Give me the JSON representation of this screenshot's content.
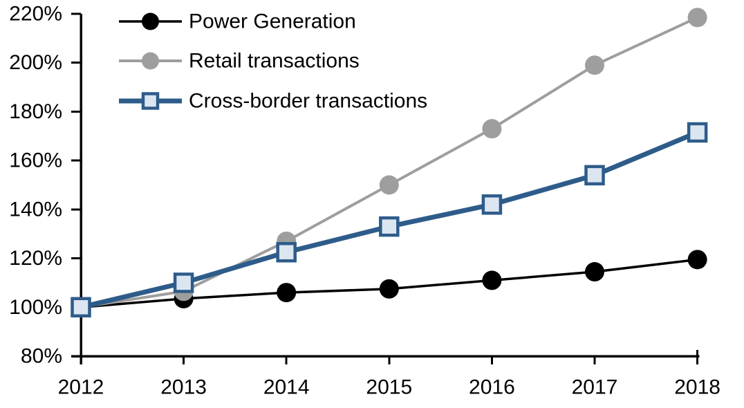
{
  "chart_data": {
    "type": "line",
    "title": "",
    "xlabel": "",
    "ylabel": "",
    "x_labels": [
      "2012",
      "2013",
      "2014",
      "2015",
      "2016",
      "2017",
      "2018"
    ],
    "y_axis": {
      "min": 80,
      "max": 220,
      "step": 20,
      "tick_suffix": "%",
      "tick_labels": [
        "80%",
        "100%",
        "120%",
        "140%",
        "160%",
        "180%",
        "200%",
        "220%"
      ]
    },
    "grid": false,
    "legend_position": "top-left",
    "axis_color": "#000000",
    "background_color": "#ffffff",
    "series": [
      {
        "name": "Power Generation",
        "color": "#000000",
        "marker": "circle",
        "marker_fill": "#000000",
        "line_width": 3.5,
        "values": [
          100,
          103.5,
          106,
          107.5,
          111,
          114.5,
          119.5
        ]
      },
      {
        "name": "Retail transactions",
        "color": "#9E9E9E",
        "marker": "circle",
        "marker_fill": "#9E9E9E",
        "line_width": 4,
        "values": [
          100,
          106.5,
          127,
          150,
          173,
          199,
          218.5
        ]
      },
      {
        "name": "Cross-border transactions",
        "color": "#2E5C8A",
        "marker": "square",
        "marker_fill": "#DCE6F1",
        "line_width": 7,
        "values": [
          100,
          110,
          122.5,
          133,
          142,
          154,
          171.5
        ]
      }
    ]
  }
}
